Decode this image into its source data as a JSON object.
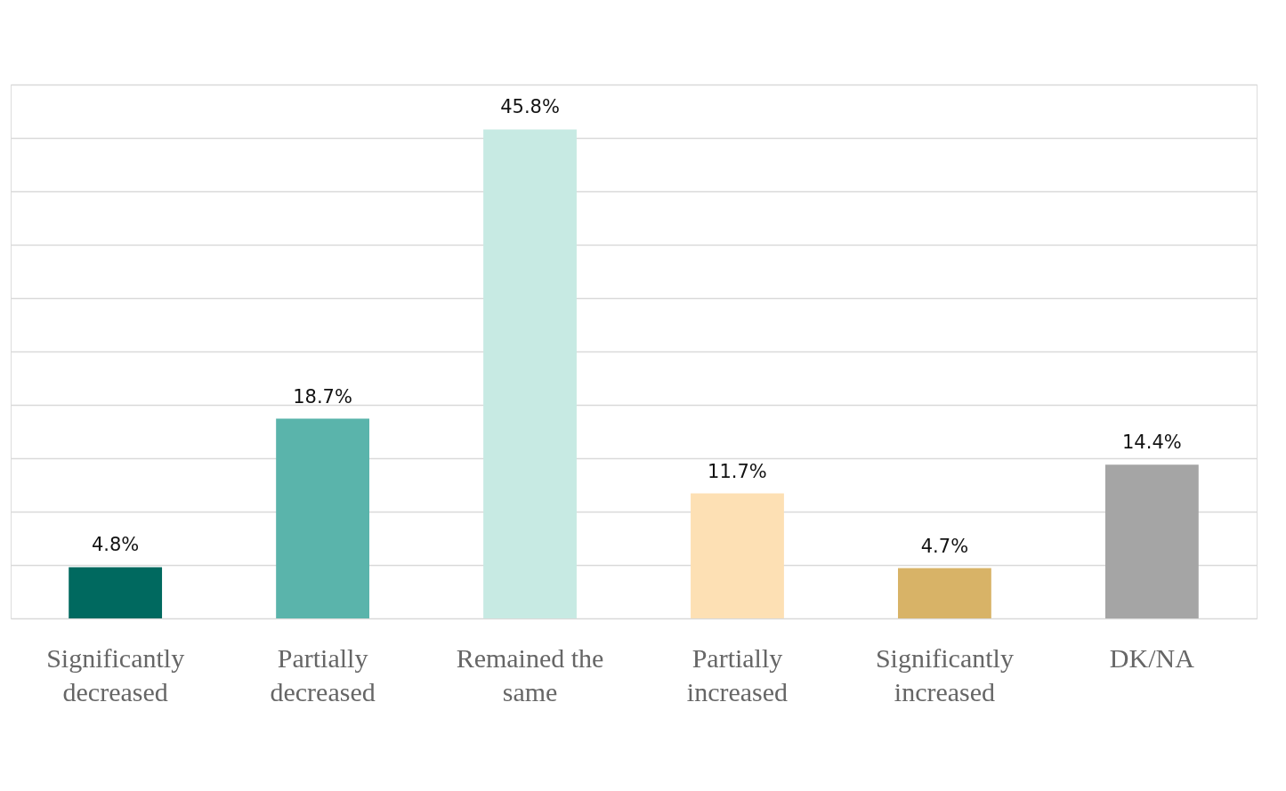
{
  "chart_data": {
    "type": "bar",
    "categories": [
      "Significantly decreased",
      "Partially decreased",
      "Remained the same",
      "Partially increased",
      "Significantly increased",
      "DK/NA"
    ],
    "values": [
      4.8,
      18.7,
      45.8,
      11.7,
      4.7,
      14.4
    ],
    "colors": [
      "#00695f",
      "#5ab4ab",
      "#c7eae3",
      "#fde0b4",
      "#d8b367",
      "#a5a5a5"
    ],
    "value_labels": [
      "4.8%",
      "18.7%",
      "45.8%",
      "11.7%",
      "4.7%",
      "14.4%"
    ],
    "ylim": [
      0,
      50
    ],
    "yticks": [
      {
        "value": 0,
        "label": null
      },
      {
        "value": 5,
        "label": null
      },
      {
        "value": 10,
        "label": null
      },
      {
        "value": 15,
        "label": null
      },
      {
        "value": 20,
        "label": null
      },
      {
        "value": 25,
        "label": null
      },
      {
        "value": 30,
        "label": null
      },
      {
        "value": 35,
        "label": null
      },
      {
        "value": 40,
        "label": null
      },
      {
        "value": 45,
        "label": null
      },
      {
        "value": 50,
        "label": null
      }
    ],
    "grid": "y"
  }
}
